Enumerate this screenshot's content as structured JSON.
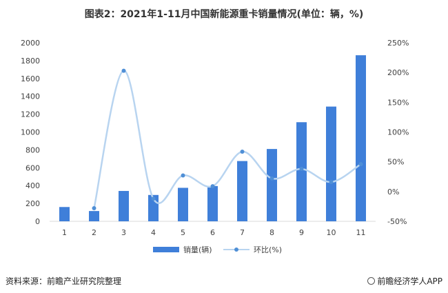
{
  "page": {
    "title": "图表2：2021年1-11月中国新能源重卡销量情况(单位：辆，%)",
    "source": "资料来源：前瞻产业研究院整理",
    "brand": "前瞻经济学人APP"
  },
  "chart_data": {
    "type": "bar",
    "title": "图表2：2021年1-11月中国新能源重卡销量情况(单位：辆，%)",
    "categories": [
      "1",
      "2",
      "3",
      "4",
      "5",
      "6",
      "7",
      "8",
      "9",
      "10",
      "11"
    ],
    "series": [
      {
        "name": "销量(辆)",
        "type": "bar",
        "axis": "left",
        "values": [
          160,
          115,
          340,
          295,
          375,
          395,
          675,
          810,
          1110,
          1285,
          1860
        ]
      },
      {
        "name": "环比(%)",
        "type": "line",
        "axis": "right",
        "values": [
          null,
          -28,
          203,
          -12,
          27,
          9,
          67,
          22,
          38,
          16,
          46
        ]
      }
    ],
    "y_left": {
      "ylim": [
        0,
        2000
      ],
      "ticks": [
        0,
        200,
        400,
        600,
        800,
        1000,
        1200,
        1400,
        1600,
        1800,
        2000
      ]
    },
    "y_right": {
      "ylim": [
        -50,
        250
      ],
      "ticks": [
        "-50%",
        "0%",
        "50%",
        "100%",
        "150%",
        "200%",
        "250%"
      ]
    },
    "colors": {
      "bar": "#3f7fd9",
      "line": "#b8d4f0",
      "marker": "#4f8fd6"
    },
    "legend": "bottom",
    "grid": false
  }
}
